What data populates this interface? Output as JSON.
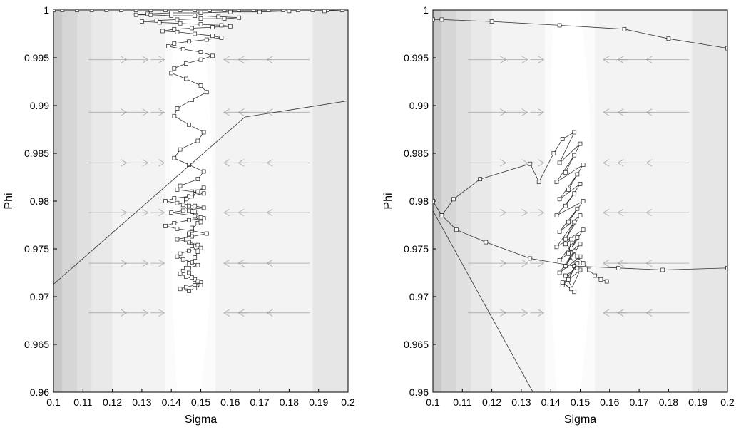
{
  "chart_data": [
    {
      "type": "line",
      "xlabel": "Sigma",
      "ylabel": "Phi",
      "xlim": [
        0.1,
        0.2
      ],
      "ylim": [
        0.96,
        1.0
      ],
      "xticks": [
        "0.1",
        "0.11",
        "0.12",
        "0.13",
        "0.14",
        "0.15",
        "0.16",
        "0.17",
        "0.18",
        "0.19",
        "0.2"
      ],
      "yticks": [
        "0.96",
        "0.965",
        "0.97",
        "0.975",
        "0.98",
        "0.985",
        "0.99",
        "0.995",
        "1"
      ],
      "background": "grayscale posterior contour bands, lightest near Sigma 0.145",
      "vector_field": "gray arrows pointing toward Sigma 0.145",
      "series": [
        {
          "marker": "open-square",
          "x": [
            0.1,
            0.103,
            0.108,
            0.113,
            0.118,
            0.123,
            0.128,
            0.133,
            0.138,
            0.143,
            0.148,
            0.153,
            0.158,
            0.163,
            0.168,
            0.173,
            0.178,
            0.183,
            0.188,
            0.193,
            0.198,
            0.192,
            0.18,
            0.17,
            0.16,
            0.15,
            0.14,
            0.132,
            0.128,
            0.133,
            0.14,
            0.148,
            0.156,
            0.163,
            0.158,
            0.15,
            0.142,
            0.135,
            0.13,
            0.136,
            0.143,
            0.15,
            0.157,
            0.16,
            0.154,
            0.147,
            0.141,
            0.137,
            0.142,
            0.148,
            0.154,
            0.157,
            0.152,
            0.146,
            0.141,
            0.139,
            0.144,
            0.15,
            0.154,
            0.15,
            0.145,
            0.141,
            0.14,
            0.145,
            0.15,
            0.152,
            0.147,
            0.142,
            0.141,
            0.146,
            0.151,
            0.149,
            0.143,
            0.141,
            0.146,
            0.151,
            0.149,
            0.143,
            0.142,
            0.147,
            0.151,
            0.146,
            0.141,
            0.138,
            0.142,
            0.148,
            0.151,
            0.144,
            0.14,
            0.147,
            0.151,
            0.146,
            0.141,
            0.138,
            0.142,
            0.147,
            0.152,
            0.147,
            0.142,
            0.146,
            0.149,
            0.15,
            0.146,
            0.143,
            0.142,
            0.144,
            0.147,
            0.149,
            0.146,
            0.144,
            0.143,
            0.145,
            0.148,
            0.15,
            0.148,
            0.145,
            0.143,
            0.146,
            0.148,
            0.15,
            0.149,
            0.147,
            0.146,
            0.145,
            0.146,
            0.148,
            0.149,
            0.147,
            0.145,
            0.146,
            0.147,
            0.149,
            0.15,
            0.148,
            0.146,
            0.145,
            0.147,
            0.149,
            0.151,
            0.147,
            0.145,
            0.144,
            0.146,
            0.148,
            0.15,
            0.147,
            0.146,
            0.145
          ],
          "y": [
            1.0,
            1.0,
            1.0,
            1.0,
            1.0,
            1.0,
            1.0,
            1.0,
            1.0,
            1.0,
            1.0,
            1.0,
            1.0,
            1.0,
            1.0,
            1.0,
            1.0,
            1.0,
            1.0,
            1.0,
            1.0,
            0.9999,
            0.9999,
            0.9998,
            0.9998,
            0.9997,
            0.9997,
            0.9996,
            0.9995,
            0.9995,
            0.9994,
            0.9994,
            0.9993,
            0.9992,
            0.9991,
            0.9991,
            0.999,
            0.9989,
            0.9988,
            0.9987,
            0.9986,
            0.9985,
            0.9984,
            0.9983,
            0.9982,
            0.9981,
            0.998,
            0.9978,
            0.9977,
            0.9975,
            0.9973,
            0.9971,
            0.9969,
            0.9967,
            0.9965,
            0.9962,
            0.9959,
            0.9956,
            0.9952,
            0.9948,
            0.9944,
            0.9939,
            0.9934,
            0.9928,
            0.9921,
            0.9914,
            0.9906,
            0.9897,
            0.9889,
            0.988,
            0.9872,
            0.9863,
            0.9854,
            0.9845,
            0.9838,
            0.9831,
            0.9823,
            0.9816,
            0.9812,
            0.981,
            0.9808,
            0.9805,
            0.9803,
            0.98,
            0.9798,
            0.9795,
            0.9793,
            0.979,
            0.9788,
            0.9785,
            0.9782,
            0.978,
            0.9777,
            0.9774,
            0.9771,
            0.9769,
            0.9766,
            0.9763,
            0.976,
            0.9757,
            0.9754,
            0.9751,
            0.9748,
            0.9745,
            0.9742,
            0.9739,
            0.9736,
            0.9733,
            0.973,
            0.9727,
            0.9724,
            0.9721,
            0.9718,
            0.9715,
            0.9712,
            0.971,
            0.9708,
            0.9706,
            0.9709,
            0.9712,
            0.9716,
            0.972,
            0.9725,
            0.973,
            0.9735,
            0.9741,
            0.9747,
            0.9753,
            0.9759,
            0.9765,
            0.9771,
            0.9777,
            0.9783,
            0.9789,
            0.9795,
            0.98,
            0.9805,
            0.981,
            0.9814,
            0.9808,
            0.9802,
            0.9796,
            0.979,
            0.9784,
            0.9778,
            0.9772,
            0.9766,
            0.976
          ]
        },
        {
          "marker": "none",
          "x": [
            0.1,
            0.165,
            0.2
          ],
          "y": [
            0.9713,
            0.9888,
            0.9905
          ]
        }
      ]
    },
    {
      "type": "line",
      "xlabel": "Sigma",
      "ylabel": "Phi",
      "xlim": [
        0.1,
        0.2
      ],
      "ylim": [
        0.96,
        1.0
      ],
      "xticks": [
        "0.1",
        "0.11",
        "0.12",
        "0.13",
        "0.14",
        "0.15",
        "0.16",
        "0.17",
        "0.18",
        "0.19",
        "0.2"
      ],
      "yticks": [
        "0.96",
        "0.965",
        "0.97",
        "0.975",
        "0.98",
        "0.985",
        "0.99",
        "0.995",
        "1"
      ],
      "background": "grayscale posterior contour bands, lightest near Sigma 0.145",
      "vector_field": "gray arrows pointing toward Sigma 0.145",
      "series": [
        {
          "marker": "open-square",
          "x": [
            0.1,
            0.103,
            0.12,
            0.143,
            0.165,
            0.18,
            0.2
          ],
          "y": [
            0.999,
            0.999,
            0.9988,
            0.9984,
            0.998,
            0.997,
            0.996
          ]
        },
        {
          "marker": "open-square",
          "x": [
            0.1,
            0.103,
            0.108,
            0.118,
            0.133,
            0.148,
            0.163,
            0.178,
            0.2
          ],
          "y": [
            0.98,
            0.9785,
            0.977,
            0.9757,
            0.974,
            0.9732,
            0.973,
            0.9728,
            0.973
          ]
        },
        {
          "marker": "open-square",
          "x": [
            0.1,
            0.103,
            0.107,
            0.116,
            0.133,
            0.136,
            0.141,
            0.144,
            0.148,
            0.143,
            0.15,
            0.145,
            0.148,
            0.142,
            0.151,
            0.146,
            0.149,
            0.143,
            0.15,
            0.145,
            0.148,
            0.142,
            0.151,
            0.146,
            0.149,
            0.143,
            0.15,
            0.145,
            0.148,
            0.142,
            0.151,
            0.146,
            0.149,
            0.143,
            0.15,
            0.145,
            0.148,
            0.143,
            0.15,
            0.146,
            0.149,
            0.144,
            0.15,
            0.147,
            0.144,
            0.148,
            0.145,
            0.149,
            0.146,
            0.147,
            0.145,
            0.147,
            0.149,
            0.151,
            0.153,
            0.155,
            0.157,
            0.159
          ],
          "y": [
            0.98,
            0.9785,
            0.9802,
            0.9823,
            0.9839,
            0.982,
            0.985,
            0.9865,
            0.9872,
            0.984,
            0.986,
            0.983,
            0.9848,
            0.982,
            0.9838,
            0.9812,
            0.9828,
            0.9802,
            0.9818,
            0.9795,
            0.9808,
            0.9785,
            0.98,
            0.9778,
            0.9792,
            0.9768,
            0.9785,
            0.976,
            0.9778,
            0.9752,
            0.977,
            0.9745,
            0.9762,
            0.9738,
            0.9755,
            0.9732,
            0.9748,
            0.9725,
            0.9742,
            0.9718,
            0.9735,
            0.9712,
            0.9728,
            0.9708,
            0.9715,
            0.9705,
            0.9722,
            0.973,
            0.9745,
            0.976,
            0.9755,
            0.975,
            0.9742,
            0.9735,
            0.9728,
            0.9722,
            0.9718,
            0.9716
          ]
        },
        {
          "marker": "none",
          "x": [
            0.1,
            0.134
          ],
          "y": [
            0.979,
            0.96
          ]
        }
      ]
    }
  ]
}
